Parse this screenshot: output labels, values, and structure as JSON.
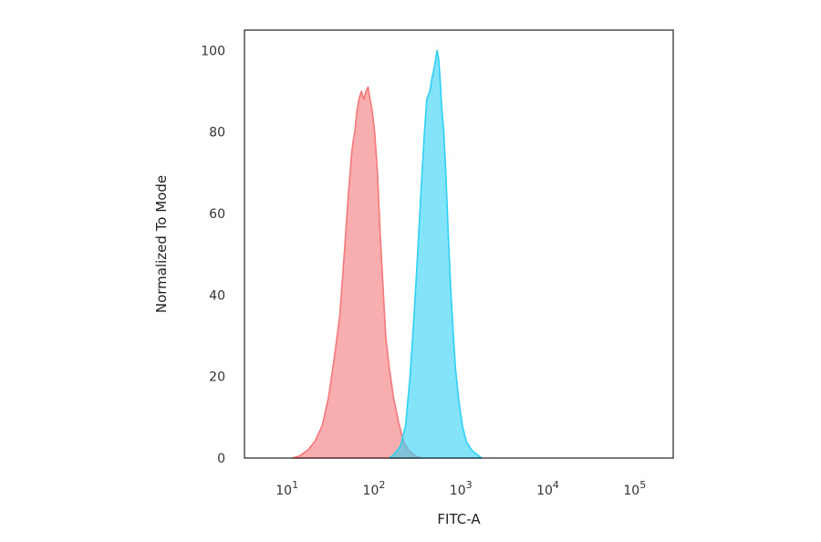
{
  "chart_data": {
    "type": "area",
    "title": "",
    "xlabel": "FITC-A",
    "ylabel": "Normalized To Mode",
    "x_scale": "log",
    "xlim": [
      2.8,
      240000
    ],
    "ylim": [
      0,
      105
    ],
    "grid": false,
    "legend": "none",
    "x_ticks": [
      {
        "value": 10,
        "base": "10",
        "exp": "1"
      },
      {
        "value": 100,
        "base": "10",
        "exp": "2"
      },
      {
        "value": 1000,
        "base": "10",
        "exp": "3"
      },
      {
        "value": 10000,
        "base": "10",
        "exp": "4"
      },
      {
        "value": 100000,
        "base": "10",
        "exp": "5"
      }
    ],
    "y_ticks": [
      0,
      20,
      40,
      60,
      80,
      100
    ],
    "series": [
      {
        "color": "#f4787a",
        "fill_opacity": 0.6,
        "points": [
          [
            10,
            0
          ],
          [
            12,
            0.5
          ],
          [
            15,
            2
          ],
          [
            18,
            4
          ],
          [
            22,
            8
          ],
          [
            26,
            15
          ],
          [
            30,
            24
          ],
          [
            35,
            35
          ],
          [
            40,
            52
          ],
          [
            44,
            65
          ],
          [
            48,
            75
          ],
          [
            50,
            78
          ],
          [
            52,
            80
          ],
          [
            55,
            85
          ],
          [
            58,
            88
          ],
          [
            62,
            90
          ],
          [
            66,
            88
          ],
          [
            70,
            90
          ],
          [
            74,
            91
          ],
          [
            78,
            88
          ],
          [
            83,
            85
          ],
          [
            88,
            80
          ],
          [
            95,
            70
          ],
          [
            102,
            55
          ],
          [
            110,
            42
          ],
          [
            118,
            30
          ],
          [
            130,
            22
          ],
          [
            145,
            15
          ],
          [
            165,
            9
          ],
          [
            190,
            4
          ],
          [
            215,
            2
          ],
          [
            260,
            0.5
          ],
          [
            300,
            0
          ]
        ]
      },
      {
        "color": "#30d0f4",
        "fill_opacity": 0.6,
        "points": [
          [
            130,
            0
          ],
          [
            150,
            1
          ],
          [
            175,
            3
          ],
          [
            200,
            8
          ],
          [
            225,
            20
          ],
          [
            250,
            35
          ],
          [
            275,
            50
          ],
          [
            300,
            65
          ],
          [
            330,
            80
          ],
          [
            350,
            88
          ],
          [
            380,
            90
          ],
          [
            400,
            93
          ],
          [
            420,
            95
          ],
          [
            445,
            98
          ],
          [
            460,
            100
          ],
          [
            480,
            98
          ],
          [
            500,
            93
          ],
          [
            520,
            86
          ],
          [
            550,
            80
          ],
          [
            580,
            70
          ],
          [
            620,
            55
          ],
          [
            660,
            42
          ],
          [
            700,
            32
          ],
          [
            750,
            22
          ],
          [
            820,
            14
          ],
          [
            900,
            8
          ],
          [
            1000,
            4
          ],
          [
            1150,
            2
          ],
          [
            1300,
            1
          ],
          [
            1500,
            0
          ]
        ]
      }
    ]
  }
}
